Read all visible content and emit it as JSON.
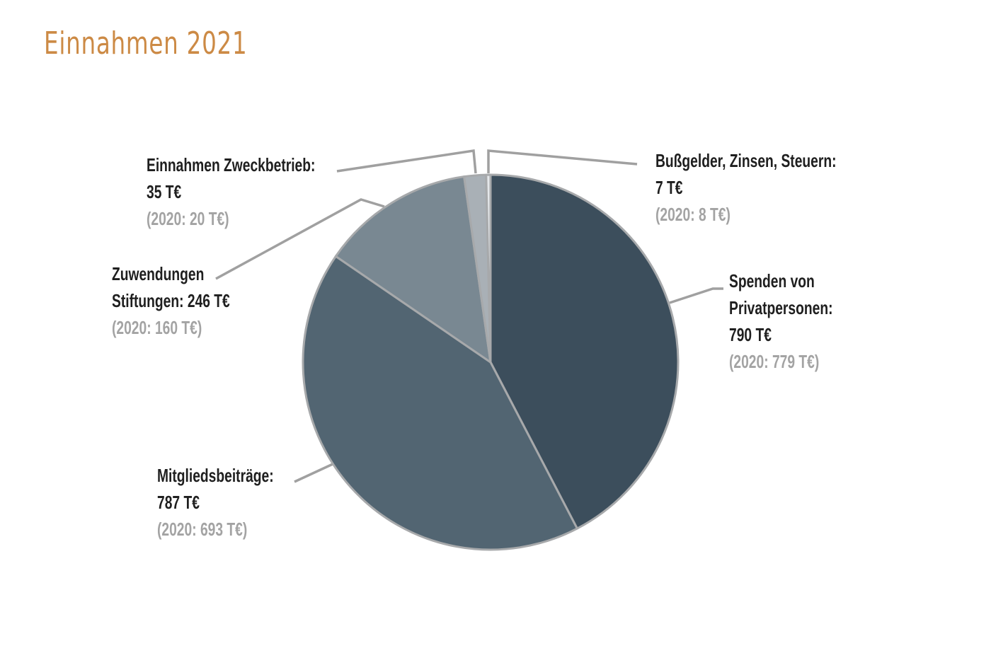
{
  "chart_data": {
    "type": "pie",
    "title": "Einnahmen 2021",
    "unit": "T€",
    "title_color": "#cc8a45",
    "label_color": "#1f1f1f",
    "prev_color": "#a3a3a3",
    "leader_color": "#a0a0a0",
    "slices": [
      {
        "id": "spenden",
        "lines": [
          "Spenden von",
          "Privatpersonen:",
          "790 T€"
        ],
        "prev_label": "(2020: 779 T€)",
        "value": 790,
        "prev_value": 779,
        "color": "#3c4e5c"
      },
      {
        "id": "mitglieder",
        "lines": [
          "Mitgliedsbeiträge:",
          "787 T€"
        ],
        "prev_label": "(2020: 693 T€)",
        "value": 787,
        "prev_value": 693,
        "color": "#526572"
      },
      {
        "id": "stiftungen",
        "lines": [
          "Zuwendungen",
          "Stiftungen: 246 T€"
        ],
        "prev_label": "(2020: 160 T€)",
        "value": 246,
        "prev_value": 160,
        "color": "#798892"
      },
      {
        "id": "zweckbetrieb",
        "lines": [
          "Einnahmen Zweckbetrieb:",
          "35 T€"
        ],
        "prev_label": "(2020: 20 T€)",
        "value": 35,
        "prev_value": 20,
        "color": "#a9b0b6"
      },
      {
        "id": "bussgelder",
        "lines": [
          "Bußgelder, Zinsen, Steuern:",
          "7 T€"
        ],
        "prev_label": "(2020: 8 T€)",
        "value": 7,
        "prev_value": 8,
        "color": "#e4e7ea"
      }
    ]
  }
}
